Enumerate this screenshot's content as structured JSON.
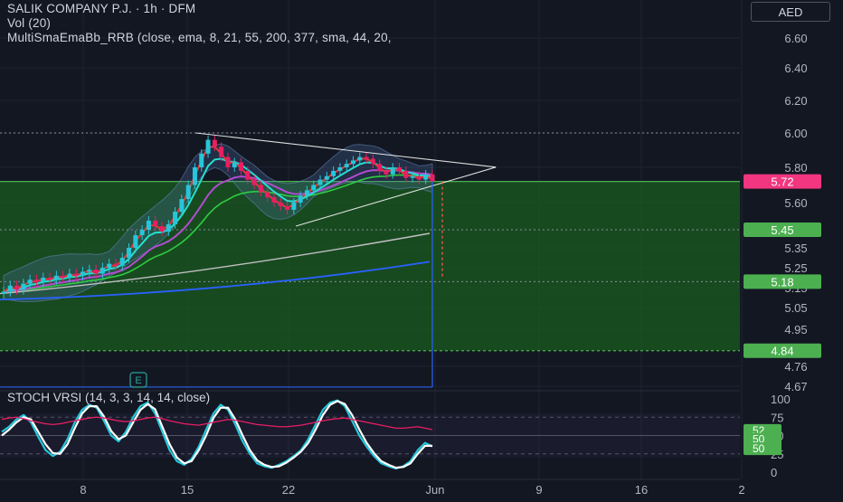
{
  "header": {
    "symbol_line": "SALIK COMPANY P.J. · 1h · DFM",
    "volume_line": "Vol (20)",
    "indicator_line": "MultiSmaEmaBb_RRB (close, ema, 8, 21, 55, 200, 377, sma, 44, 20,"
  },
  "currency_button": "AED",
  "stoch_title": "STOCH VRSI (14, 3, 3, 14, 14, close)",
  "event_marker": "E",
  "colors": {
    "background": "#131722",
    "up": "#26c6da",
    "down": "#e91e63",
    "zone_fill": "#1b5e20",
    "zone_line": "#4caf50",
    "price_badge": "#f23680",
    "level_badge": "#4caf50",
    "ema8": "#e53935",
    "ema21": "#26e0d0",
    "ema55": "#2ecc40",
    "ema200": "#c0c0c0",
    "ema377": "#2962ff",
    "sma44": "#b14cd0",
    "trendline": "#ffffff"
  },
  "chart_data": [
    {
      "type": "candlestick",
      "title": "SALIK COMPANY P.J. · 1h · DFM",
      "currency": "AED",
      "x_tick_labels": [
        "8",
        "15",
        "22",
        "Jun",
        "9",
        "16",
        "2"
      ],
      "y_tick_labels": [
        6.6,
        6.4,
        6.2,
        6.0,
        5.8,
        5.6,
        5.35,
        5.25,
        5.15,
        5.05,
        4.95,
        4.76,
        4.67
      ],
      "ylim": [
        4.67,
        6.6
      ],
      "price_badges": [
        {
          "label": "5.72",
          "value": 5.72,
          "kind": "last"
        },
        {
          "label": "5.45",
          "value": 5.45,
          "kind": "level"
        },
        {
          "label": "5.18",
          "value": 5.18,
          "kind": "level"
        },
        {
          "label": "4.84",
          "value": 4.84,
          "kind": "level"
        }
      ],
      "zone": {
        "top": 5.72,
        "bottom": 4.84
      },
      "dotted_levels": [
        6.0,
        5.45,
        5.18
      ],
      "trendlines": [
        {
          "from": [
            15.6,
            6.0
          ],
          "to": [
            32.5,
            5.76
          ]
        },
        {
          "from": [
            22.5,
            5.47
          ],
          "to": [
            32.5,
            5.76
          ]
        }
      ],
      "candles_close": [
        5.13,
        5.16,
        5.14,
        5.17,
        5.19,
        5.18,
        5.2,
        5.19,
        5.21,
        5.2,
        5.22,
        5.21,
        5.23,
        5.24,
        5.22,
        5.25,
        5.27,
        5.26,
        5.3,
        5.35,
        5.42,
        5.45,
        5.5,
        5.47,
        5.44,
        5.48,
        5.55,
        5.62,
        5.7,
        5.8,
        5.88,
        5.96,
        5.92,
        5.86,
        5.8,
        5.83,
        5.78,
        5.73,
        5.7,
        5.66,
        5.63,
        5.6,
        5.58,
        5.56,
        5.6,
        5.64,
        5.67,
        5.7,
        5.73,
        5.75,
        5.78,
        5.8,
        5.82,
        5.84,
        5.86,
        5.85,
        5.82,
        5.78,
        5.76,
        5.8,
        5.78,
        5.74,
        5.75,
        5.73,
        5.76,
        5.72
      ]
    },
    {
      "type": "line",
      "title": "STOCH VRSI (14, 3, 3, 14, 14, close)",
      "ylim": [
        0,
        100
      ],
      "y_tick_labels": [
        100,
        75,
        50,
        25,
        0
      ],
      "value_badges": [
        52,
        50,
        50
      ],
      "series": [
        {
          "color": "#26c6da",
          "values": [
            55,
            62,
            72,
            78,
            68,
            48,
            30,
            22,
            28,
            45,
            68,
            85,
            92,
            88,
            70,
            50,
            42,
            55,
            75,
            90,
            95,
            80,
            55,
            30,
            15,
            10,
            18,
            35,
            58,
            80,
            92,
            85,
            65,
            42,
            25,
            12,
            8,
            6,
            10,
            15,
            22,
            30,
            45,
            65,
            85,
            95,
            98,
            90,
            70,
            50,
            35,
            22,
            12,
            8,
            5,
            8,
            15,
            30,
            40,
            35
          ]
        },
        {
          "color": "#ffffff",
          "values": [
            50,
            58,
            68,
            75,
            72,
            55,
            38,
            26,
            25,
            38,
            60,
            80,
            90,
            90,
            76,
            56,
            45,
            50,
            68,
            85,
            93,
            86,
            62,
            38,
            20,
            12,
            15,
            30,
            50,
            74,
            88,
            88,
            72,
            50,
            30,
            16,
            10,
            7,
            8,
            13,
            20,
            28,
            40,
            58,
            78,
            92,
            97,
            93,
            78,
            58,
            40,
            26,
            15,
            10,
            6,
            7,
            12,
            25,
            36,
            36
          ]
        },
        {
          "color": "#e91e63",
          "values": [
            72,
            74,
            75,
            73,
            70,
            68,
            66,
            65,
            66,
            68,
            70,
            72,
            74,
            75,
            74,
            72,
            70,
            69,
            70,
            72,
            74,
            75,
            73,
            70,
            68,
            66,
            65,
            64,
            66,
            68,
            70,
            72,
            71,
            69,
            67,
            65,
            64,
            63,
            62,
            62,
            63,
            64,
            66,
            68,
            70,
            72,
            73,
            74,
            72,
            70,
            68,
            66,
            64,
            62,
            60,
            60,
            61,
            62,
            60,
            58
          ]
        }
      ]
    }
  ]
}
